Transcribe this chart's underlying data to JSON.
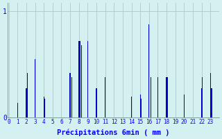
{
  "xlabel": "Précipitations 6min ( mm )",
  "background_color": "#d4f0f0",
  "bar_color": "#0000cc",
  "grid_color": "#b0c8c8",
  "ylim": [
    0,
    1.08
  ],
  "yticks": [
    0,
    1
  ],
  "hour_labels": [
    "0",
    "1",
    "2",
    "3",
    "4",
    "5",
    "6",
    "7",
    "8",
    "9",
    "10",
    "11",
    "12",
    "13",
    "14",
    "15",
    "16",
    "17",
    "18",
    "19",
    "20",
    "21",
    "22",
    "23"
  ],
  "values": [
    0.0,
    0.0,
    0.0,
    0.0,
    0.0,
    0.0,
    0.0,
    0.0,
    0.0,
    0.0,
    0.14,
    0.0,
    0.0,
    0.0,
    0.0,
    0.0,
    0.0,
    0.0,
    0.0,
    0.0,
    0.28,
    0.42,
    0.0,
    0.0,
    0.0,
    0.0,
    0.0,
    0.0,
    0.0,
    0.0,
    0.55,
    0.0,
    0.0,
    0.0,
    0.0,
    0.0,
    0.0,
    0.0,
    0.0,
    0.0,
    0.2,
    0.18,
    0.0,
    0.0,
    0.0,
    0.0,
    0.0,
    0.0,
    0.0,
    0.0,
    0.0,
    0.0,
    0.0,
    0.0,
    0.0,
    0.0,
    0.0,
    0.0,
    0.0,
    0.0,
    0.0,
    0.0,
    0.0,
    0.0,
    0.0,
    0.0,
    0.0,
    0.0,
    0.0,
    0.0,
    0.42,
    0.0,
    0.38,
    0.0,
    0.0,
    0.0,
    0.0,
    0.0,
    0.0,
    0.0,
    0.72,
    0.72,
    0.0,
    0.68,
    0.0,
    0.0,
    0.0,
    0.0,
    0.0,
    0.0,
    0.72,
    0.0,
    0.0,
    0.0,
    0.0,
    0.0,
    0.0,
    0.0,
    0.0,
    0.0,
    0.28,
    0.0,
    0.0,
    0.0,
    0.0,
    0.0,
    0.0,
    0.0,
    0.0,
    0.0,
    0.38,
    0.0,
    0.0,
    0.0,
    0.0,
    0.0,
    0.0,
    0.0,
    0.0,
    0.0,
    0.0,
    0.0,
    0.0,
    0.0,
    0.0,
    0.0,
    0.0,
    0.0,
    0.0,
    0.0,
    0.0,
    0.0,
    0.0,
    0.0,
    0.0,
    0.0,
    0.0,
    0.0,
    0.0,
    0.0,
    0.2,
    0.0,
    0.0,
    0.0,
    0.0,
    0.0,
    0.0,
    0.0,
    0.0,
    0.0,
    0.22,
    0.18,
    0.0,
    0.0,
    0.0,
    0.0,
    0.0,
    0.0,
    0.0,
    0.0,
    0.88,
    0.0,
    0.38,
    0.0,
    0.0,
    0.0,
    0.0,
    0.0,
    0.0,
    0.0,
    0.38,
    0.0,
    0.0,
    0.0,
    0.0,
    0.0,
    0.0,
    0.0,
    0.0,
    0.0,
    0.38,
    0.38,
    0.0,
    0.0,
    0.0,
    0.0,
    0.0,
    0.0,
    0.0,
    0.0,
    0.0,
    0.0,
    0.0,
    0.0,
    0.0,
    0.0,
    0.0,
    0.0,
    0.0,
    0.0,
    0.22,
    0.0,
    0.0,
    0.0,
    0.0,
    0.0,
    0.0,
    0.0,
    0.0,
    0.0,
    0.0,
    0.0,
    0.0,
    0.0,
    0.0,
    0.0,
    0.0,
    0.0,
    0.0,
    0.0,
    0.28,
    0.38,
    0.0,
    0.0,
    0.0,
    0.0,
    0.0,
    0.0,
    0.0,
    0.0,
    0.42,
    0.28,
    0.28,
    0.0,
    0.0,
    0.0,
    0.0,
    0.0,
    0.0,
    0.0
  ]
}
